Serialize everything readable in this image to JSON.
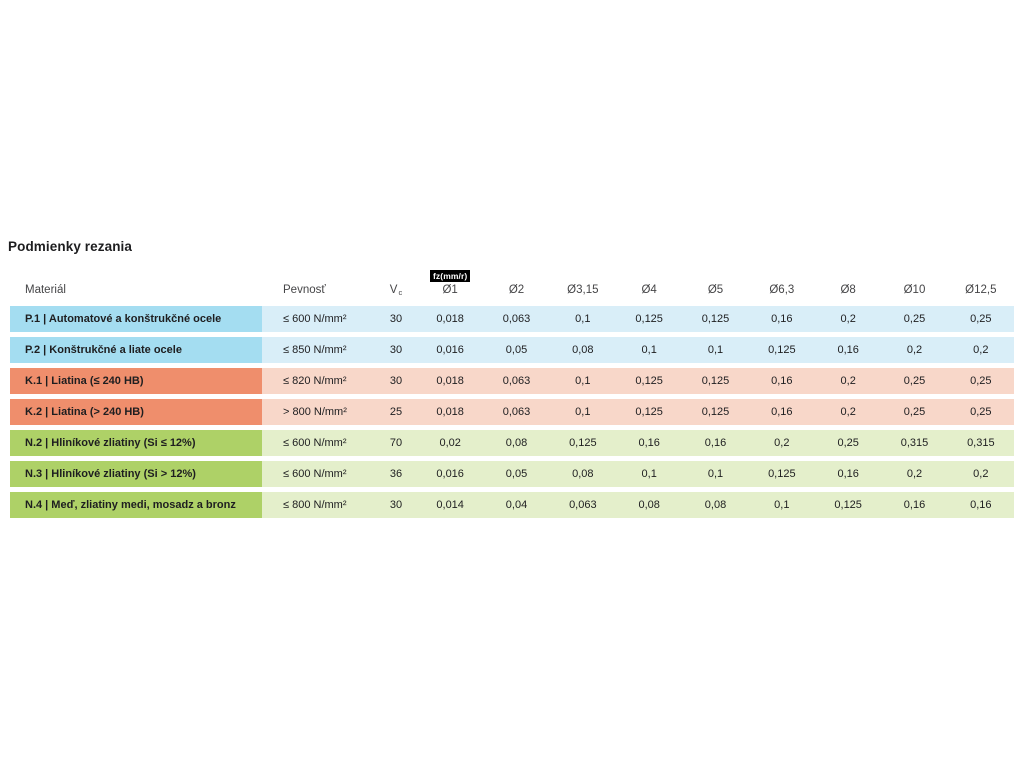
{
  "title": "Podmienky rezania",
  "table": {
    "headers": {
      "material": "Materiál",
      "strength": "Pevnosť",
      "vc_base": "V",
      "vc_sub": "c",
      "fz_badge": "fz(mm/r)",
      "diameters": [
        "Ø1",
        "Ø2",
        "Ø3,15",
        "Ø4",
        "Ø5",
        "Ø6,3",
        "Ø8",
        "Ø10",
        "Ø12,5"
      ]
    },
    "rows": [
      {
        "material": "P.1 | Automatové a konštrukčné ocele",
        "strength": "≤ 600 N/mm²",
        "vc": "30",
        "values": [
          "0,018",
          "0,063",
          "0,1",
          "0,125",
          "0,125",
          "0,16",
          "0,2",
          "0,25",
          "0,25"
        ],
        "color": "blue"
      },
      {
        "material": "P.2 | Konštrukčné a liate ocele",
        "strength": "≤ 850 N/mm²",
        "vc": "30",
        "values": [
          "0,016",
          "0,05",
          "0,08",
          "0,1",
          "0,1",
          "0,125",
          "0,16",
          "0,2",
          "0,2"
        ],
        "color": "blue"
      },
      {
        "material": "K.1 | Liatina (≤ 240 HB)",
        "strength": "≤ 820 N/mm²",
        "vc": "30",
        "values": [
          "0,018",
          "0,063",
          "0,1",
          "0,125",
          "0,125",
          "0,16",
          "0,2",
          "0,25",
          "0,25"
        ],
        "color": "orange"
      },
      {
        "material": "K.2 | Liatina (> 240 HB)",
        "strength": "> 800 N/mm²",
        "vc": "25",
        "values": [
          "0,018",
          "0,063",
          "0,1",
          "0,125",
          "0,125",
          "0,16",
          "0,2",
          "0,25",
          "0,25"
        ],
        "color": "orange"
      },
      {
        "material": "N.2 | Hliníkové zliatiny (Si ≤ 12%)",
        "strength": "≤ 600 N/mm²",
        "vc": "70",
        "values": [
          "0,02",
          "0,08",
          "0,125",
          "0,16",
          "0,16",
          "0,2",
          "0,25",
          "0,315",
          "0,315"
        ],
        "color": "green"
      },
      {
        "material": "N.3 | Hliníkové zliatiny (Si > 12%)",
        "strength": "≤ 600 N/mm²",
        "vc": "36",
        "values": [
          "0,016",
          "0,05",
          "0,08",
          "0,1",
          "0,1",
          "0,125",
          "0,16",
          "0,2",
          "0,2"
        ],
        "color": "green"
      },
      {
        "material": "N.4 | Meď, zliatiny medi, mosadz a bronz",
        "strength": "≤ 800 N/mm²",
        "vc": "30",
        "values": [
          "0,014",
          "0,04",
          "0,063",
          "0,08",
          "0,08",
          "0,1",
          "0,125",
          "0,16",
          "0,16"
        ],
        "color": "green"
      }
    ],
    "colors": {
      "blue": {
        "strong": "#a4ddf1",
        "light": "#d9eef8"
      },
      "orange": {
        "strong": "#ef8e6c",
        "light": "#f8d7c9"
      },
      "green": {
        "strong": "#aed167",
        "light": "#e4efcb"
      }
    }
  }
}
